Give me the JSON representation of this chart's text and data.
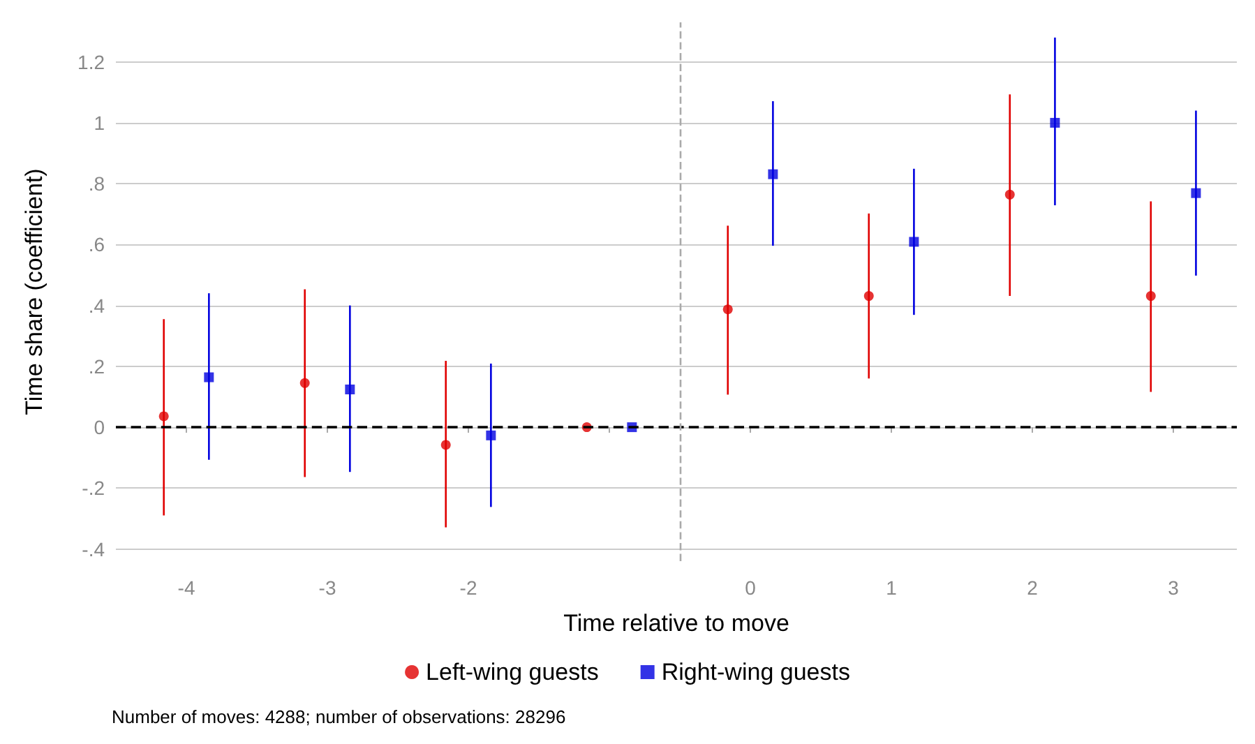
{
  "chart_data": {
    "type": "scatter",
    "xlabel": "Time relative to move",
    "ylabel": "Time share (coefficient)",
    "series": [
      {
        "name": "Left-wing guests",
        "color": "#e00000",
        "marker": "circle",
        "x": [
          -4.16,
          -3.16,
          -2.16,
          -1.16,
          -0.16,
          0.84,
          1.84,
          2.84
        ],
        "values": [
          0.036,
          0.145,
          -0.058,
          0,
          0.387,
          0.431,
          0.764,
          0.431
        ],
        "errors": [
          [
            -0.29,
            0.355
          ],
          [
            -0.164,
            0.453
          ],
          [
            -0.329,
            0.218
          ],
          null,
          [
            0.107,
            0.662
          ],
          [
            0.16,
            0.702
          ],
          [
            0.431,
            1.093
          ],
          [
            0.116,
            0.742
          ]
        ]
      },
      {
        "name": "Right-wing guests",
        "color": "#0000e0",
        "marker": "square",
        "x": [
          -3.84,
          -2.84,
          -1.84,
          -0.84,
          0.16,
          1.16,
          2.16,
          3.16
        ],
        "values": [
          0.164,
          0.124,
          -0.027,
          0,
          0.831,
          0.609,
          1.0,
          0.769
        ],
        "errors": [
          [
            -0.107,
            0.44
          ],
          [
            -0.147,
            0.4
          ],
          [
            -0.262,
            0.209
          ],
          null,
          [
            0.596,
            1.071
          ],
          [
            0.369,
            0.849
          ],
          [
            0.729,
            1.28
          ],
          [
            0.498,
            1.04
          ]
        ]
      }
    ],
    "xlim": [
      -4.5,
      3.45
    ],
    "ylim": [
      -0.44,
      1.33
    ],
    "xticks": [
      -4,
      -3,
      -2,
      {
        "value": -1,
        "label": null
      },
      0,
      1,
      2,
      3
    ],
    "yticks": [
      {
        "value": -0.4,
        "label": "-.4"
      },
      {
        "value": -0.2,
        "label": "-.2"
      },
      0,
      {
        "value": 0.2,
        "label": ".2"
      },
      {
        "value": 0.4,
        "label": ".4"
      },
      {
        "value": 0.6,
        "label": ".6"
      },
      {
        "value": 0.8,
        "label": ".8"
      },
      1,
      {
        "value": 1.2,
        "label": "1.2"
      }
    ],
    "grid": "y",
    "legend": "bottom",
    "ref_lines": [
      {
        "axis": "y",
        "value": 0,
        "label": null,
        "color": "#000000",
        "line_style": "dashed"
      },
      {
        "axis": "x",
        "value": -0.5,
        "label": null,
        "color": "#aaaaaa",
        "line_style": "dashed"
      }
    ],
    "annotations": [
      "Number of moves: 4288; number of observations: 28296"
    ]
  }
}
